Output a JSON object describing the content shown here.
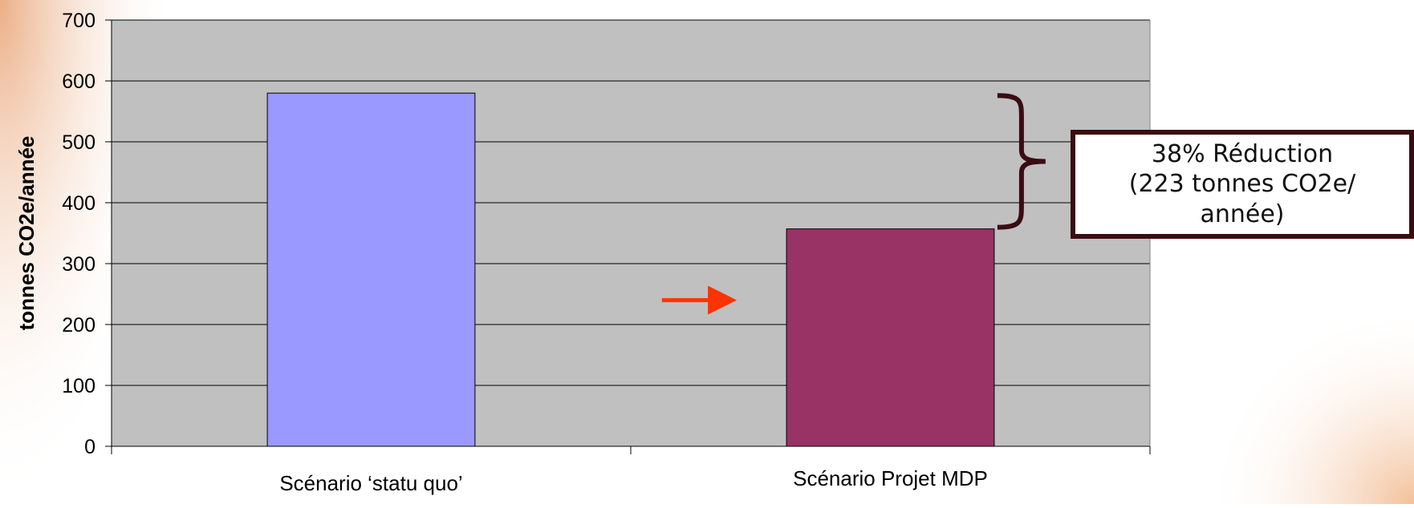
{
  "chart_data": {
    "type": "bar",
    "categories": [
      "Scénario ‘statu quo’",
      "Scénario Projet MDP"
    ],
    "values": [
      580,
      357
    ],
    "colors": [
      "#9999ff",
      "#993366"
    ],
    "ylabel": "tonnes CO2e/année",
    "xlabel": "",
    "title": "",
    "ylim": [
      0,
      700
    ],
    "yticks": [
      0,
      100,
      200,
      300,
      400,
      500,
      600,
      700
    ],
    "grid": true,
    "plot_background": "#c0c0c0"
  },
  "annotation": {
    "lines": [
      "38% Réduction",
      "(223 tonnes CO2e/",
      "année)"
    ],
    "brace_color": "#3a0c12",
    "border_color": "#3a0c12"
  },
  "arrow": {
    "color": "#ff3300",
    "icon": "right-arrow-icon"
  }
}
